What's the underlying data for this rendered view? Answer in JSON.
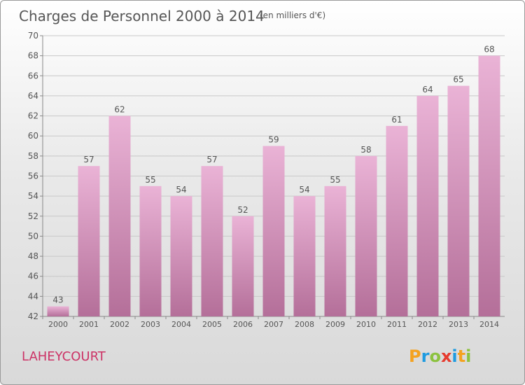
{
  "chart_title": "Charges de Personnel 2000 à 2014",
  "chart_subtitle": "(en milliers d'€)",
  "location_label": "LAHEYCOURT",
  "logo_text": "Proxiti",
  "colors": {
    "bar_light": "#eab3d6",
    "bar_dark": "#b46f99",
    "title_text": "#555555",
    "location_text": "#cc3366",
    "logo_p": "#f4a21f",
    "logo_r": "#1e9be0",
    "logo_o": "#8cc23f",
    "logo_x": "#e63b2e",
    "logo_i": "#1e9be0",
    "logo_t": "#f4a21f",
    "logo_i2": "#8cc23f"
  },
  "chart_data": {
    "type": "bar",
    "categories": [
      "2000",
      "2001",
      "2002",
      "2003",
      "2004",
      "2005",
      "2006",
      "2007",
      "2008",
      "2009",
      "2010",
      "2011",
      "2012",
      "2013",
      "2014"
    ],
    "values": [
      43,
      57,
      62,
      55,
      54,
      57,
      52,
      59,
      54,
      55,
      58,
      61,
      64,
      65,
      68
    ],
    "ylim": [
      42,
      70
    ],
    "yticks": [
      42,
      44,
      46,
      48,
      50,
      52,
      54,
      56,
      58,
      60,
      62,
      64,
      66,
      68,
      70
    ],
    "grid": true,
    "data_labels": true,
    "legend": "none"
  }
}
